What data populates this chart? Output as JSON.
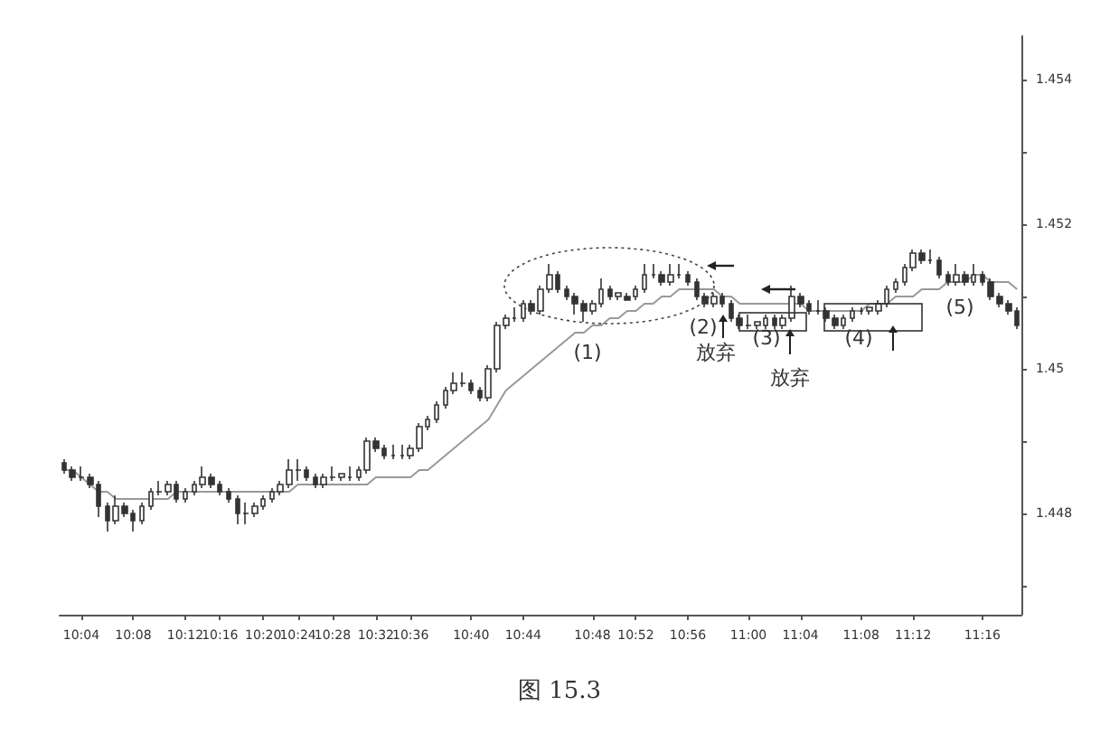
{
  "chart_data": {
    "type": "candlestick",
    "title": "图 15.3",
    "categories": [
      null,
      null,
      "10:04",
      null,
      null,
      null,
      null,
      null,
      "10:08",
      null,
      null,
      null,
      null,
      null,
      "10:12",
      null,
      null,
      null,
      "10:16",
      null,
      null,
      null,
      null,
      "10:20",
      null,
      null,
      null,
      "10:24",
      null,
      null,
      null,
      "10:28",
      null,
      null,
      null,
      null,
      "10:32",
      null,
      null,
      null,
      "10:36",
      null,
      null,
      null,
      null,
      null,
      null,
      "10:40",
      null,
      null,
      null,
      null,
      null,
      "10:44",
      null,
      null,
      null,
      null,
      null,
      null,
      null,
      "10:48",
      null,
      null,
      null,
      null,
      "10:52",
      null,
      null,
      null,
      null,
      null,
      "10:56",
      null,
      null,
      null,
      null,
      null,
      null,
      "11:00",
      null,
      null,
      null,
      null,
      null,
      "11:04",
      null,
      null,
      null,
      null,
      null,
      null,
      "11:08",
      null,
      null,
      null,
      null,
      null,
      "11:12",
      null,
      null,
      null,
      null,
      null,
      null,
      null,
      "11:16",
      null,
      null,
      null,
      null
    ],
    "series": [
      {
        "color": "#333333",
        "ohlc": [
          [
            1.4487,
            1.44875,
            1.44855,
            1.4486
          ],
          [
            1.4486,
            1.44865,
            1.44845,
            1.4485
          ],
          [
            1.4485,
            1.44865,
            1.44845,
            1.4485
          ],
          [
            1.4485,
            1.44855,
            1.44835,
            1.4484
          ],
          [
            1.4484,
            1.44845,
            1.44795,
            1.4481
          ],
          [
            1.4481,
            1.44815,
            1.44775,
            1.4479
          ],
          [
            1.4479,
            1.44825,
            1.44785,
            1.4481
          ],
          [
            1.4481,
            1.44815,
            1.44795,
            1.448
          ],
          [
            1.448,
            1.44805,
            1.44775,
            1.4479
          ],
          [
            1.4479,
            1.44815,
            1.44785,
            1.4481
          ],
          [
            1.4481,
            1.44835,
            1.44805,
            1.4483
          ],
          [
            1.4483,
            1.44845,
            1.44825,
            1.4483
          ],
          [
            1.4483,
            1.44845,
            1.44825,
            1.4484
          ],
          [
            1.4484,
            1.44845,
            1.44815,
            1.4482
          ],
          [
            1.4482,
            1.44835,
            1.44815,
            1.4483
          ],
          [
            1.4483,
            1.44845,
            1.44825,
            1.4484
          ],
          [
            1.4484,
            1.44865,
            1.44835,
            1.4485
          ],
          [
            1.4485,
            1.44855,
            1.44835,
            1.4484
          ],
          [
            1.4484,
            1.44845,
            1.44825,
            1.4483
          ],
          [
            1.4483,
            1.44835,
            1.44815,
            1.4482
          ],
          [
            1.4482,
            1.44825,
            1.44785,
            1.448
          ],
          [
            1.448,
            1.44815,
            1.44785,
            1.448
          ],
          [
            1.448,
            1.44815,
            1.44795,
            1.4481
          ],
          [
            1.4481,
            1.44825,
            1.44805,
            1.4482
          ],
          [
            1.4482,
            1.44835,
            1.44815,
            1.4483
          ],
          [
            1.4483,
            1.44845,
            1.44825,
            1.4484
          ],
          [
            1.4484,
            1.44875,
            1.44835,
            1.4486
          ],
          [
            1.4486,
            1.44875,
            1.44845,
            1.4486
          ],
          [
            1.4486,
            1.44865,
            1.44845,
            1.4485
          ],
          [
            1.4485,
            1.44855,
            1.44835,
            1.4484
          ],
          [
            1.4484,
            1.44855,
            1.44835,
            1.4485
          ],
          [
            1.4485,
            1.44865,
            1.44845,
            1.4485
          ],
          [
            1.4485,
            1.44855,
            1.44845,
            1.44855
          ],
          [
            1.4485,
            1.44865,
            1.44845,
            1.4485
          ],
          [
            1.4485,
            1.44865,
            1.44845,
            1.4486
          ],
          [
            1.4486,
            1.44905,
            1.44855,
            1.449
          ],
          [
            1.449,
            1.44905,
            1.44885,
            1.4489
          ],
          [
            1.4489,
            1.44895,
            1.44875,
            1.4488
          ],
          [
            1.4488,
            1.44895,
            1.44875,
            1.4488
          ],
          [
            1.4488,
            1.44895,
            1.44875,
            1.4488
          ],
          [
            1.4488,
            1.44895,
            1.44875,
            1.4489
          ],
          [
            1.4489,
            1.44925,
            1.44885,
            1.4492
          ],
          [
            1.4492,
            1.44935,
            1.44915,
            1.4493
          ],
          [
            1.4493,
            1.44955,
            1.44925,
            1.4495
          ],
          [
            1.4495,
            1.44975,
            1.44945,
            1.4497
          ],
          [
            1.4497,
            1.44995,
            1.44965,
            1.4498
          ],
          [
            1.4498,
            1.44995,
            1.44975,
            1.4498
          ],
          [
            1.4498,
            1.44985,
            1.44965,
            1.4497
          ],
          [
            1.4497,
            1.44975,
            1.44955,
            1.4496
          ],
          [
            1.4496,
            1.45005,
            1.44955,
            1.45
          ],
          [
            1.45,
            1.45065,
            1.44995,
            1.4506
          ],
          [
            1.4506,
            1.45075,
            1.45055,
            1.4507
          ],
          [
            1.4507,
            1.45085,
            1.45065,
            1.4507
          ],
          [
            1.4507,
            1.45095,
            1.45065,
            1.4509
          ],
          [
            1.4509,
            1.45095,
            1.45075,
            1.4508
          ],
          [
            1.4508,
            1.45115,
            1.45075,
            1.4511
          ],
          [
            1.4511,
            1.45145,
            1.45105,
            1.4513
          ],
          [
            1.4513,
            1.45135,
            1.45105,
            1.4511
          ],
          [
            1.4511,
            1.45115,
            1.45095,
            1.451
          ],
          [
            1.451,
            1.45105,
            1.45075,
            1.4509
          ],
          [
            1.4509,
            1.45095,
            1.45065,
            1.4508
          ],
          [
            1.4508,
            1.45095,
            1.45075,
            1.4509
          ],
          [
            1.4509,
            1.45125,
            1.45085,
            1.4511
          ],
          [
            1.4511,
            1.45115,
            1.45095,
            1.451
          ],
          [
            1.451,
            1.45105,
            1.45095,
            1.45105
          ],
          [
            1.451,
            1.45105,
            1.45095,
            1.45095
          ],
          [
            1.451,
            1.45115,
            1.45095,
            1.4511
          ],
          [
            1.4511,
            1.45145,
            1.45105,
            1.4513
          ],
          [
            1.4513,
            1.45145,
            1.45125,
            1.4513
          ],
          [
            1.4513,
            1.45135,
            1.45115,
            1.4512
          ],
          [
            1.4512,
            1.45145,
            1.45115,
            1.4513
          ],
          [
            1.4513,
            1.45145,
            1.45125,
            1.4513
          ],
          [
            1.4513,
            1.45135,
            1.45115,
            1.4512
          ],
          [
            1.4512,
            1.45125,
            1.45095,
            1.451
          ],
          [
            1.451,
            1.45105,
            1.45085,
            1.4509
          ],
          [
            1.4509,
            1.45105,
            1.45085,
            1.451
          ],
          [
            1.451,
            1.45105,
            1.45085,
            1.4509
          ],
          [
            1.4509,
            1.45095,
            1.45065,
            1.4507
          ],
          [
            1.4507,
            1.45075,
            1.45055,
            1.4506
          ],
          [
            1.4506,
            1.45075,
            1.45055,
            1.4506
          ],
          [
            1.4506,
            1.45065,
            1.45055,
            1.45065
          ],
          [
            1.4506,
            1.45075,
            1.45055,
            1.4507
          ],
          [
            1.4507,
            1.45075,
            1.45055,
            1.4506
          ],
          [
            1.4506,
            1.45075,
            1.45055,
            1.4507
          ],
          [
            1.4507,
            1.45115,
            1.45065,
            1.451
          ],
          [
            1.451,
            1.45105,
            1.45085,
            1.4509
          ],
          [
            1.4509,
            1.45095,
            1.45075,
            1.4508
          ],
          [
            1.4508,
            1.45095,
            1.45075,
            1.4508
          ],
          [
            1.4508,
            1.45085,
            1.45065,
            1.4507
          ],
          [
            1.4507,
            1.45075,
            1.45055,
            1.4506
          ],
          [
            1.4506,
            1.45075,
            1.45055,
            1.4507
          ],
          [
            1.4507,
            1.45085,
            1.45065,
            1.4508
          ],
          [
            1.4508,
            1.45085,
            1.45075,
            1.4508
          ],
          [
            1.4508,
            1.45085,
            1.45075,
            1.45085
          ],
          [
            1.4508,
            1.45095,
            1.45075,
            1.4509
          ],
          [
            1.4509,
            1.45115,
            1.45085,
            1.4511
          ],
          [
            1.4511,
            1.45125,
            1.45105,
            1.4512
          ],
          [
            1.4512,
            1.45145,
            1.45115,
            1.4514
          ],
          [
            1.4514,
            1.45165,
            1.45135,
            1.4516
          ],
          [
            1.4516,
            1.45165,
            1.45145,
            1.4515
          ],
          [
            1.4515,
            1.45165,
            1.45145,
            1.4515
          ],
          [
            1.4515,
            1.45155,
            1.45125,
            1.4513
          ],
          [
            1.4513,
            1.45135,
            1.45115,
            1.4512
          ],
          [
            1.4512,
            1.45145,
            1.45115,
            1.4513
          ],
          [
            1.4513,
            1.45135,
            1.45115,
            1.4512
          ],
          [
            1.4512,
            1.45145,
            1.45115,
            1.4513
          ],
          [
            1.4513,
            1.45135,
            1.45115,
            1.4512
          ],
          [
            1.4512,
            1.45125,
            1.45095,
            1.451
          ],
          [
            1.451,
            1.45105,
            1.45085,
            1.4509
          ],
          [
            1.4509,
            1.45095,
            1.45075,
            1.4508
          ],
          [
            1.4508,
            1.45085,
            1.45055,
            1.4506
          ]
        ]
      },
      {
        "type": "line",
        "color": "#999999",
        "values": [
          1.4486,
          1.4486,
          1.4485,
          1.4484,
          1.4483,
          1.4483,
          1.4482,
          1.4482,
          1.4482,
          1.4482,
          1.4482,
          1.4482,
          1.4482,
          1.4483,
          1.4483,
          1.4483,
          1.4483,
          1.4483,
          1.4483,
          1.4483,
          1.4483,
          1.4483,
          1.4483,
          1.4483,
          1.4483,
          1.4483,
          1.4483,
          1.4484,
          1.4484,
          1.4484,
          1.4484,
          1.4484,
          1.4484,
          1.4484,
          1.4484,
          1.4484,
          1.4485,
          1.4485,
          1.4485,
          1.4485,
          1.4485,
          1.4486,
          1.4486,
          1.4487,
          1.4488,
          1.4489,
          1.449,
          1.4491,
          1.4492,
          1.4493,
          1.4495,
          1.4497,
          1.4498,
          1.4499,
          1.45,
          1.4501,
          1.4502,
          1.4503,
          1.4504,
          1.4505,
          1.4505,
          1.4506,
          1.4506,
          1.4507,
          1.4507,
          1.4508,
          1.4508,
          1.4509,
          1.4509,
          1.451,
          1.451,
          1.4511,
          1.4511,
          1.4511,
          1.4511,
          1.4511,
          1.451,
          1.451,
          1.4509,
          1.4509,
          1.4509,
          1.4509,
          1.4509,
          1.4509,
          1.4509,
          1.4509,
          1.4508,
          1.4508,
          1.4508,
          1.4508,
          1.4508,
          1.4508,
          1.4508,
          1.4509,
          1.4509,
          1.4509,
          1.451,
          1.451,
          1.451,
          1.4511,
          1.4511,
          1.4511,
          1.4512,
          1.4512,
          1.4512,
          1.4513,
          1.4513,
          1.4512,
          1.4512,
          1.4512,
          1.4511
        ]
      }
    ],
    "ylim": [
      1.4466,
      1.4546
    ],
    "yticks": [
      {
        "value": 1.447,
        "label": null
      },
      1.448,
      {
        "value": 1.449,
        "label": null
      },
      1.45,
      {
        "value": 1.451,
        "label": null
      },
      1.452,
      {
        "value": 1.453,
        "label": null
      },
      1.454
    ],
    "annotations": [
      "(1)",
      "(2)",
      "放弃",
      "(3)",
      "放弃",
      "(4)",
      "(5)"
    ],
    "grid": false,
    "marker": "none"
  }
}
